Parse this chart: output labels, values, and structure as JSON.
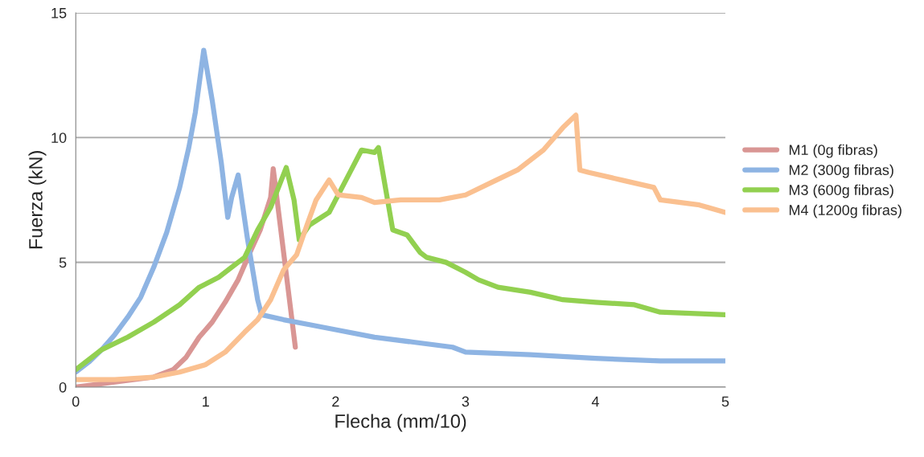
{
  "chart_data": {
    "type": "line",
    "xlabel": "Flecha (mm/10)",
    "ylabel": "Fuerza (kN)",
    "xlim": [
      0,
      5
    ],
    "xticks": [
      0,
      1,
      2,
      3,
      4,
      5
    ],
    "ylim": [
      0,
      15
    ],
    "yticks": [
      0,
      5,
      10,
      15
    ],
    "grid": "y",
    "legend": "right",
    "marker": "none",
    "line_style": "solid",
    "series": [
      {
        "name": "M1 (0g fibras)",
        "color": "#d99694",
        "x": [
          0,
          0.3,
          0.6,
          0.75,
          0.85,
          0.95,
          1.05,
          1.15,
          1.25,
          1.35,
          1.42,
          1.5,
          1.52,
          1.69
        ],
        "values": [
          0,
          0.2,
          0.4,
          0.7,
          1.2,
          2.0,
          2.6,
          3.4,
          4.3,
          5.5,
          6.3,
          7.6,
          8.75,
          1.6
        ]
      },
      {
        "name": "M2 (300g fibras)",
        "color": "#8eb4e3",
        "x": [
          0,
          0.1,
          0.2,
          0.3,
          0.4,
          0.5,
          0.6,
          0.7,
          0.8,
          0.87,
          0.92,
          0.985,
          1.05,
          1.12,
          1.17,
          1.2,
          1.25,
          1.32,
          1.4,
          1.43,
          1.6,
          1.8,
          2.0,
          2.3,
          2.6,
          2.9,
          3.0,
          3.5,
          4.0,
          4.5,
          5.0
        ],
        "values": [
          0.6,
          1.0,
          1.5,
          2.1,
          2.8,
          3.6,
          4.8,
          6.2,
          8.0,
          9.6,
          11.0,
          13.5,
          11.5,
          9.0,
          6.8,
          7.6,
          8.5,
          6.0,
          3.5,
          2.9,
          2.7,
          2.5,
          2.3,
          2.0,
          1.8,
          1.6,
          1.4,
          1.3,
          1.15,
          1.05,
          1.05
        ]
      },
      {
        "name": "M3 (600g fibras)",
        "color": "#92d050",
        "x": [
          0,
          0.1,
          0.2,
          0.4,
          0.6,
          0.8,
          0.95,
          1.1,
          1.2,
          1.3,
          1.4,
          1.5,
          1.62,
          1.68,
          1.72,
          1.8,
          1.95,
          2.05,
          2.1,
          2.2,
          2.3,
          2.33,
          2.44,
          2.55,
          2.65,
          2.7,
          2.85,
          3.0,
          3.1,
          3.25,
          3.5,
          3.75,
          4.0,
          4.3,
          4.5,
          5.0
        ],
        "values": [
          0.7,
          1.1,
          1.5,
          2.0,
          2.6,
          3.3,
          4.0,
          4.4,
          4.8,
          5.2,
          6.3,
          7.2,
          8.8,
          7.5,
          5.9,
          6.5,
          7.0,
          8.0,
          8.5,
          9.5,
          9.4,
          9.6,
          6.3,
          6.1,
          5.4,
          5.2,
          5.0,
          4.6,
          4.3,
          4.0,
          3.8,
          3.5,
          3.4,
          3.3,
          3.0,
          2.9
        ]
      },
      {
        "name": "M4 (1200g fibras)",
        "color": "#fac090",
        "x": [
          0,
          0.3,
          0.6,
          0.8,
          1.0,
          1.15,
          1.3,
          1.4,
          1.5,
          1.6,
          1.7,
          1.78,
          1.85,
          1.95,
          2.02,
          2.2,
          2.3,
          2.5,
          2.8,
          3.0,
          3.2,
          3.4,
          3.6,
          3.75,
          3.85,
          3.88,
          3.95,
          4.2,
          4.45,
          4.5,
          4.8,
          5.0
        ],
        "values": [
          0.3,
          0.3,
          0.4,
          0.6,
          0.9,
          1.4,
          2.2,
          2.7,
          3.5,
          4.7,
          5.3,
          6.5,
          7.5,
          8.3,
          7.7,
          7.6,
          7.4,
          7.5,
          7.5,
          7.7,
          8.2,
          8.7,
          9.5,
          10.4,
          10.9,
          8.7,
          8.6,
          8.3,
          8.0,
          7.5,
          7.3,
          7.0
        ]
      }
    ]
  }
}
